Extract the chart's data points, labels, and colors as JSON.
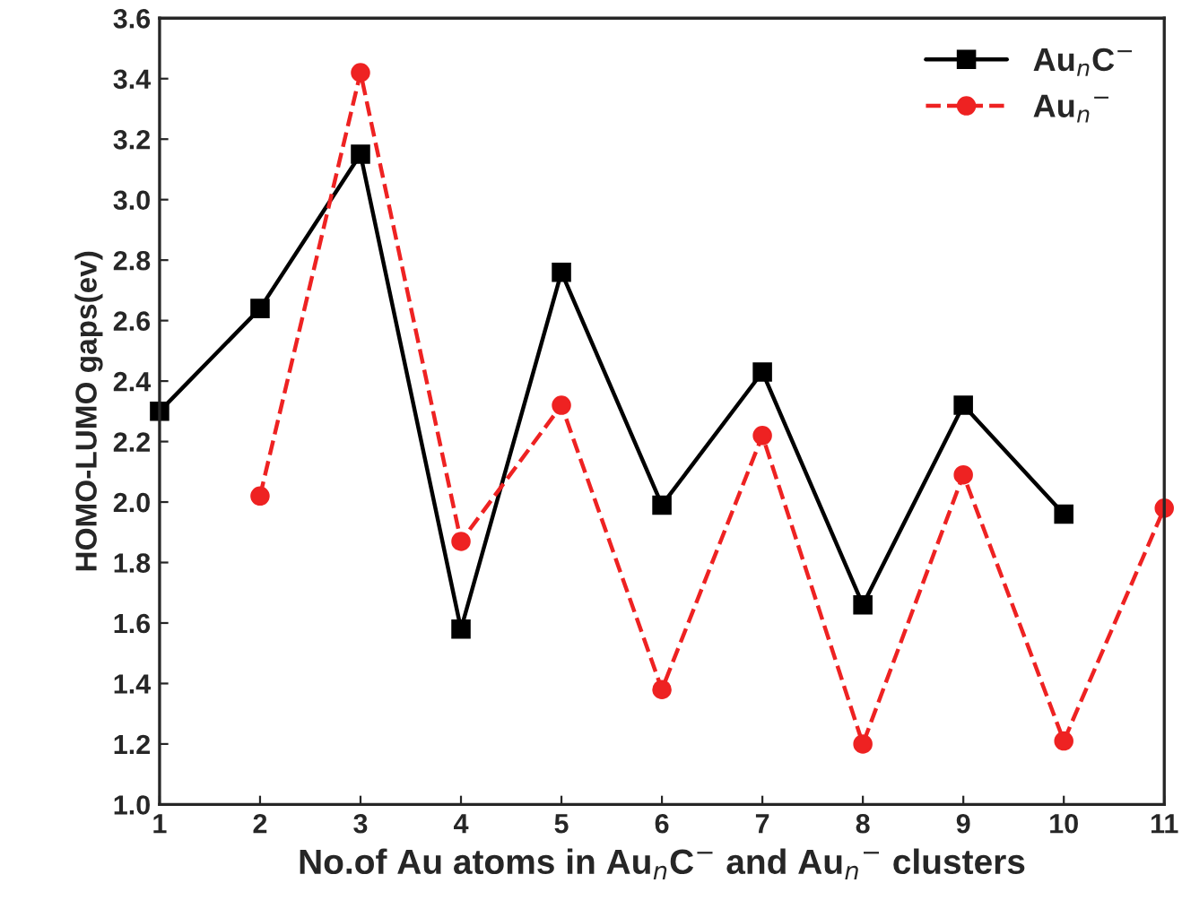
{
  "chart_data": {
    "type": "line",
    "xlabel": "No.of Au atoms in Au$_{n}$C$^{−}$ and Au$_{n}$$^{−}$ clusters",
    "ylabel": "HOMO-LUMO gaps(ev)",
    "series": [
      {
        "name": "Au$_{n}$C$^{−}$",
        "color": "#000000",
        "marker": "square",
        "line_style": "solid",
        "x": [
          1,
          2,
          3,
          4,
          5,
          6,
          7,
          8,
          9,
          10
        ],
        "values": [
          2.3,
          2.64,
          3.15,
          1.58,
          2.76,
          1.99,
          2.43,
          1.66,
          2.32,
          1.96
        ]
      },
      {
        "name": "Au$_{n}$$^{−}$",
        "color": "#ee2222",
        "marker": "circle",
        "line_style": "dashed",
        "x": [
          2,
          3,
          4,
          5,
          6,
          7,
          8,
          9,
          10,
          11
        ],
        "values": [
          2.02,
          3.42,
          1.87,
          2.32,
          1.38,
          2.22,
          1.2,
          2.09,
          1.21,
          1.98
        ]
      }
    ],
    "xlim": [
      1,
      11
    ],
    "xticks": [
      1,
      2,
      3,
      4,
      5,
      6,
      7,
      8,
      9,
      10,
      11
    ],
    "ylim": [
      1.0,
      3.6
    ],
    "yticks": [
      {
        "value": 1.0,
        "label": "1.0"
      },
      {
        "value": 1.2,
        "label": "1.2"
      },
      {
        "value": 1.4,
        "label": "1.4"
      },
      {
        "value": 1.6,
        "label": "1.6"
      },
      {
        "value": 1.8,
        "label": "1.8"
      },
      {
        "value": 2.0,
        "label": "2.0"
      },
      {
        "value": 2.2,
        "label": "2.2"
      },
      {
        "value": 2.4,
        "label": "2.4"
      },
      {
        "value": 2.6,
        "label": "2.6"
      },
      {
        "value": 2.8,
        "label": "2.8"
      },
      {
        "value": 3.0,
        "label": "3.0"
      },
      {
        "value": 3.2,
        "label": "3.2"
      },
      {
        "value": 3.4,
        "label": "3.4"
      },
      {
        "value": 3.6,
        "label": "3.6"
      }
    ],
    "legend": "top right",
    "grid": false
  }
}
